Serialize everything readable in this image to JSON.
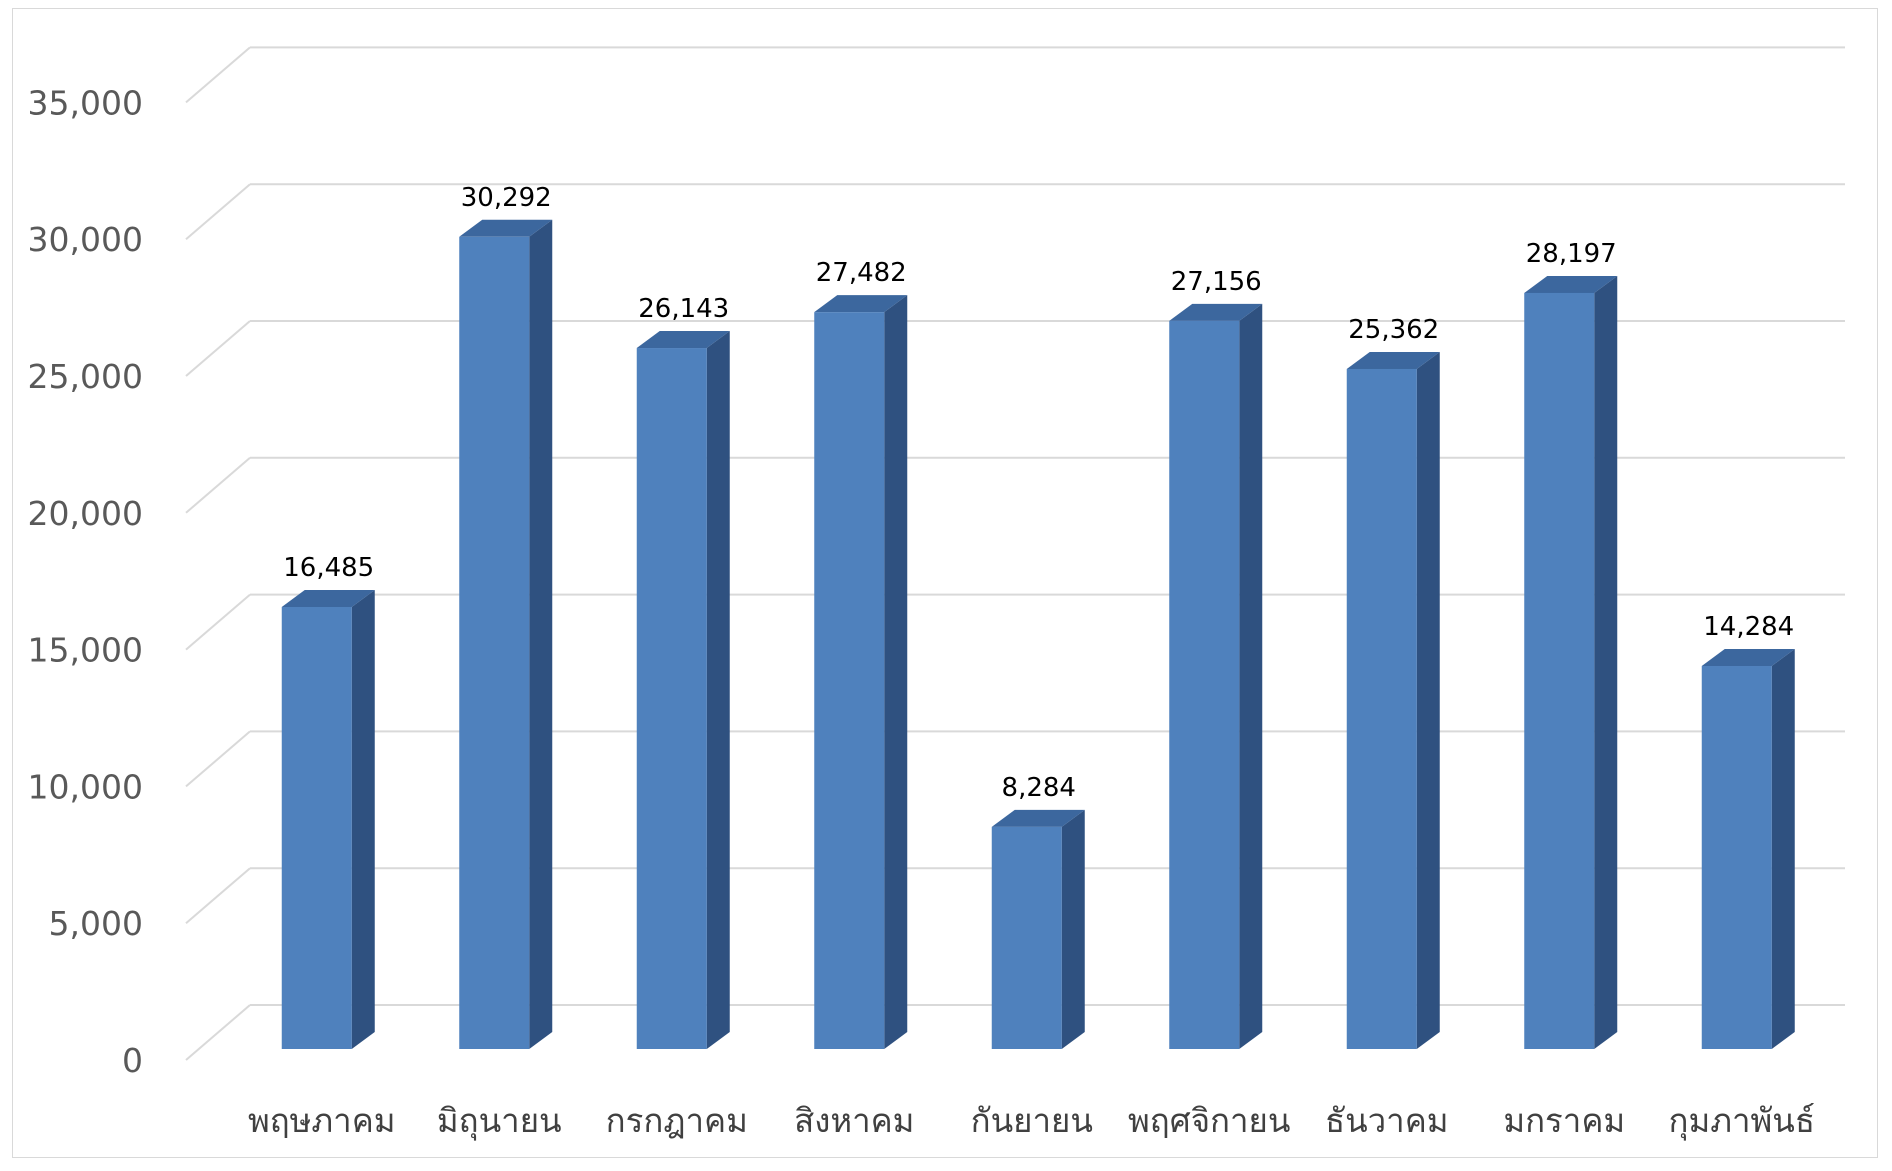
{
  "chart_data": {
    "type": "bar",
    "style": "3d-column",
    "categories": [
      "พฤษภาคม",
      "มิถุนายน",
      "กรกฎาคม",
      "สิงหาคม",
      "กันยายน",
      "พฤศจิกายน",
      "ธันวาคม",
      "มกราคม",
      "กุมภาพันธ์"
    ],
    "values": [
      16485,
      30292,
      26143,
      27482,
      8284,
      27156,
      25362,
      28197,
      14284
    ],
    "data_labels": [
      "16,485",
      "30,292",
      "26,143",
      "27,482",
      "8,284",
      "27,156",
      "25,362",
      "28,197",
      "14,284"
    ],
    "y_ticks": [
      "0",
      "5,000",
      "10,000",
      "15,000",
      "20,000",
      "25,000",
      "30,000",
      "35,000"
    ],
    "ylim": [
      0,
      35000
    ],
    "title": "",
    "xlabel": "",
    "ylabel": "",
    "grid": true,
    "legend": "none",
    "colors": {
      "bar_front": "#4f81bd",
      "bar_side": "#2f5180",
      "bar_top": "#3c679e",
      "grid": "#d9d9d9"
    }
  }
}
